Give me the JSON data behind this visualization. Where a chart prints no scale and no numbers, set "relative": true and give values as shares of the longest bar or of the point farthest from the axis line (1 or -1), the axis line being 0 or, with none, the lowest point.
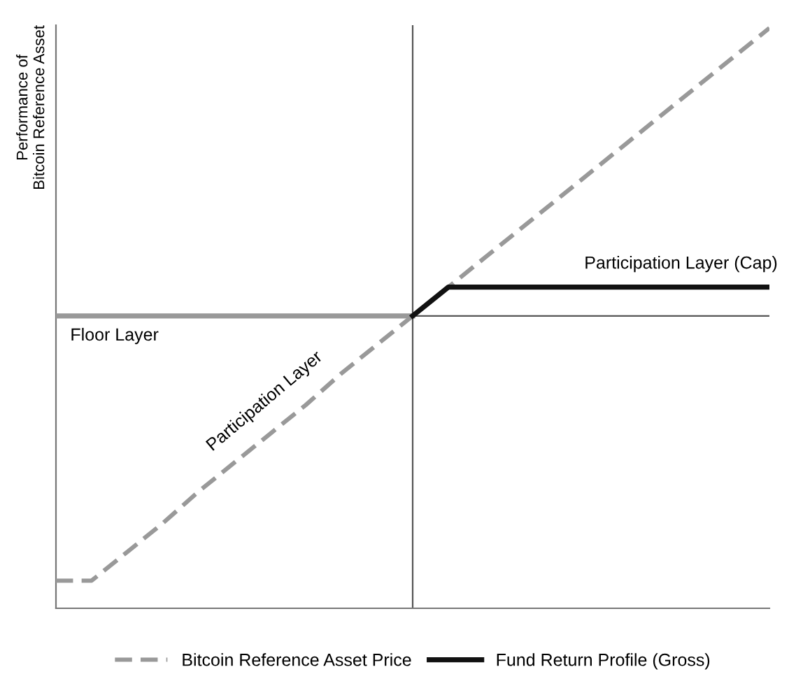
{
  "chart_data": {
    "type": "line",
    "relative": true,
    "ylabel": "Performance of\nBitcoin Reference Asset",
    "legend": "bottom",
    "categories": [
      null,
      null,
      null,
      null,
      null,
      null,
      null,
      null,
      null,
      null,
      null,
      null,
      null,
      null,
      null,
      null,
      null,
      null,
      null,
      null,
      null
    ],
    "series": [
      {
        "name": "Bitcoin Reference Asset Price",
        "color": "#999999",
        "line_style": "dashed",
        "values": [
          -0.92,
          -0.92,
          -0.82,
          -0.72,
          -0.61,
          -0.51,
          -0.41,
          -0.31,
          -0.2,
          -0.1,
          0,
          0.1,
          0.2,
          0.3,
          0.4,
          0.5,
          0.6,
          0.7,
          0.8,
          0.9,
          1.0
        ]
      },
      {
        "color": "#999999",
        "line_style": "solid",
        "values": [
          0,
          0,
          0,
          0,
          0,
          0,
          0,
          0,
          0,
          0,
          0,
          null,
          null,
          null,
          null,
          null,
          null,
          null,
          null,
          null,
          null
        ]
      },
      {
        "name": "Fund Return Profile (Gross)",
        "color": "#111111",
        "line_style": "solid",
        "values": [
          null,
          null,
          null,
          null,
          null,
          null,
          null,
          null,
          null,
          null,
          0,
          0.1,
          0.1,
          0.1,
          0.1,
          0.1,
          0.1,
          0.1,
          0.1,
          0.1,
          0.1
        ]
      }
    ],
    "annotations": [
      "Floor Layer",
      "Participation Layer",
      "Participation Layer (Cap)"
    ]
  }
}
